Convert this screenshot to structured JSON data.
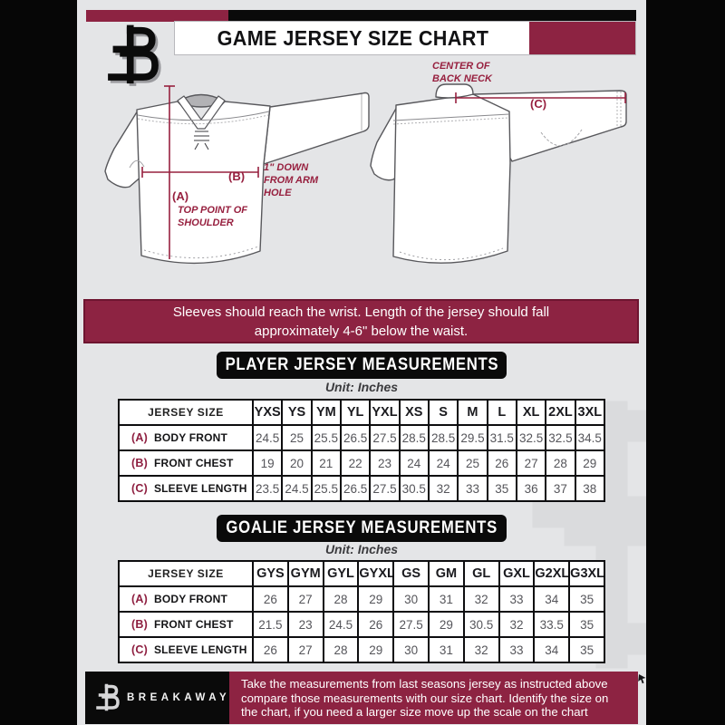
{
  "page": {
    "title": "GAME JERSEY SIZE CHART",
    "banner": "Sleeves should reach the wrist. Length of the jersey should fall approximately 4-6\" below the waist.",
    "brand": "BREAKAWAY",
    "footer_note": "Take the measurements from last seasons jersey as instructed above compare those measurements  with our size chart. Identify the size on the chart, if you need a larger size move up the scale on the chart"
  },
  "diagram": {
    "front": {
      "a_label": "(A)",
      "a_caption": "TOP POINT OF SHOULDER",
      "b_label": "(B)",
      "b_caption": "1\" DOWN FROM ARM HOLE"
    },
    "back": {
      "c_label": "(C)",
      "c_caption": "CENTER OF BACK NECK"
    }
  },
  "player": {
    "title": "PLAYER JERSEY MEASUREMENTS",
    "unit": "Unit: Inches",
    "size_header": "JERSEY SIZE",
    "sizes": [
      "YXS",
      "YS",
      "YM",
      "YL",
      "YXL",
      "XS",
      "S",
      "M",
      "L",
      "XL",
      "2XL",
      "3XL"
    ],
    "rows": [
      {
        "key": "(A)",
        "label": "BODY FRONT",
        "values": [
          "24.5",
          "25",
          "25.5",
          "26.5",
          "27.5",
          "28.5",
          "28.5",
          "29.5",
          "31.5",
          "32.5",
          "32.5",
          "34.5"
        ]
      },
      {
        "key": "(B)",
        "label": "FRONT CHEST",
        "values": [
          "19",
          "20",
          "21",
          "22",
          "23",
          "24",
          "24",
          "25",
          "26",
          "27",
          "28",
          "29"
        ]
      },
      {
        "key": "(C)",
        "label": "SLEEVE LENGTH",
        "values": [
          "23.5",
          "24.5",
          "25.5",
          "26.5",
          "27.5",
          "30.5",
          "32",
          "33",
          "35",
          "36",
          "37",
          "38"
        ]
      }
    ]
  },
  "goalie": {
    "title": "GOALIE JERSEY MEASUREMENTS",
    "unit": "Unit: Inches",
    "size_header": "JERSEY SIZE",
    "sizes": [
      "GYS",
      "GYM",
      "GYL",
      "GYXL",
      "GS",
      "GM",
      "GL",
      "GXL",
      "G2XL",
      "G3XL"
    ],
    "rows": [
      {
        "key": "(A)",
        "label": "BODY FRONT",
        "values": [
          "26",
          "27",
          "28",
          "29",
          "30",
          "31",
          "32",
          "33",
          "34",
          "35"
        ]
      },
      {
        "key": "(B)",
        "label": "FRONT CHEST",
        "values": [
          "21.5",
          "23",
          "24.5",
          "26",
          "27.5",
          "29",
          "30.5",
          "32",
          "33.5",
          "35"
        ]
      },
      {
        "key": "(C)",
        "label": "SLEEVE LENGTH",
        "values": [
          "26",
          "27",
          "28",
          "29",
          "30",
          "31",
          "32",
          "33",
          "34",
          "35"
        ]
      }
    ]
  },
  "colors": {
    "maroon": "#8D2342",
    "maroon_text": "#97203F",
    "black": "#0A0A0A",
    "background": "#E4E5E7"
  }
}
